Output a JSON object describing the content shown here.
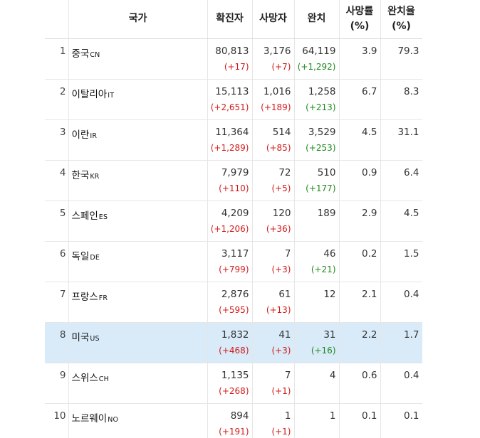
{
  "headers": {
    "country": "국가",
    "cases": "확진자",
    "deaths": "사망자",
    "recovered": "완치",
    "death_rate_l1": "사망률",
    "death_rate_l2": "(%)",
    "recovery_rate_l1": "완치율",
    "recovery_rate_l2": "(%)"
  },
  "rows": [
    {
      "rank": "1",
      "name": "중국",
      "code": "CN",
      "cases": "80,813",
      "cases_delta": "(+17)",
      "deaths": "3,176",
      "deaths_delta": "(+7)",
      "recovered": "64,119",
      "recovered_delta": "(+1,292)",
      "death_rate": "3.9",
      "recovery_rate": "79.3",
      "highlight": false
    },
    {
      "rank": "2",
      "name": "이탈리아",
      "code": "IT",
      "cases": "15,113",
      "cases_delta": "(+2,651)",
      "deaths": "1,016",
      "deaths_delta": "(+189)",
      "recovered": "1,258",
      "recovered_delta": "(+213)",
      "death_rate": "6.7",
      "recovery_rate": "8.3",
      "highlight": false
    },
    {
      "rank": "3",
      "name": "이란",
      "code": "IR",
      "cases": "11,364",
      "cases_delta": "(+1,289)",
      "deaths": "514",
      "deaths_delta": "(+85)",
      "recovered": "3,529",
      "recovered_delta": "(+253)",
      "death_rate": "4.5",
      "recovery_rate": "31.1",
      "highlight": false
    },
    {
      "rank": "4",
      "name": "한국",
      "code": "KR",
      "cases": "7,979",
      "cases_delta": "(+110)",
      "deaths": "72",
      "deaths_delta": "(+5)",
      "recovered": "510",
      "recovered_delta": "(+177)",
      "death_rate": "0.9",
      "recovery_rate": "6.4",
      "highlight": false
    },
    {
      "rank": "5",
      "name": "스페인",
      "code": "ES",
      "cases": "4,209",
      "cases_delta": "(+1,206)",
      "deaths": "120",
      "deaths_delta": "(+36)",
      "recovered": "189",
      "recovered_delta": "",
      "death_rate": "2.9",
      "recovery_rate": "4.5",
      "highlight": false
    },
    {
      "rank": "6",
      "name": "독일",
      "code": "DE",
      "cases": "3,117",
      "cases_delta": "(+799)",
      "deaths": "7",
      "deaths_delta": "(+3)",
      "recovered": "46",
      "recovered_delta": "(+21)",
      "death_rate": "0.2",
      "recovery_rate": "1.5",
      "highlight": false
    },
    {
      "rank": "7",
      "name": "프랑스",
      "code": "FR",
      "cases": "2,876",
      "cases_delta": "(+595)",
      "deaths": "61",
      "deaths_delta": "(+13)",
      "recovered": "12",
      "recovered_delta": "",
      "death_rate": "2.1",
      "recovery_rate": "0.4",
      "highlight": false
    },
    {
      "rank": "8",
      "name": "미국",
      "code": "US",
      "cases": "1,832",
      "cases_delta": "(+468)",
      "deaths": "41",
      "deaths_delta": "(+3)",
      "recovered": "31",
      "recovered_delta": "(+16)",
      "death_rate": "2.2",
      "recovery_rate": "1.7",
      "highlight": true
    },
    {
      "rank": "9",
      "name": "스위스",
      "code": "CH",
      "cases": "1,135",
      "cases_delta": "(+268)",
      "deaths": "7",
      "deaths_delta": "(+1)",
      "recovered": "4",
      "recovered_delta": "",
      "death_rate": "0.6",
      "recovery_rate": "0.4",
      "highlight": false
    },
    {
      "rank": "10",
      "name": "노르웨이",
      "code": "NO",
      "cases": "894",
      "cases_delta": "(+191)",
      "deaths": "1",
      "deaths_delta": "(+1)",
      "recovered": "1",
      "recovered_delta": "",
      "death_rate": "0.1",
      "recovery_rate": "0.1",
      "highlight": false
    }
  ],
  "colors": {
    "increase": "#d11a1a",
    "recovered_increase": "#1d8a1d",
    "highlight_row": "#d9eaf8"
  }
}
